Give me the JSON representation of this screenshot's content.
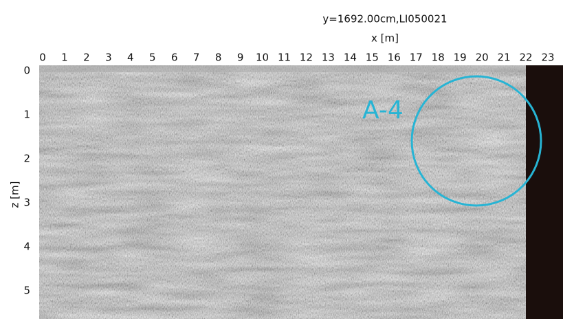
{
  "chart_data": {
    "type": "radargram",
    "title": "y=1692.00cm,LI050021",
    "xlabel": "x [m]",
    "ylabel": "z [m]",
    "annotation": "A-4",
    "xlim": [
      0,
      23
    ],
    "xticks": [
      0,
      1,
      2,
      3,
      4,
      5,
      6,
      7,
      8,
      9,
      10,
      11,
      12,
      13,
      14,
      15,
      16,
      17,
      18,
      19,
      20,
      21,
      22,
      23
    ],
    "ylim": [
      0,
      5
    ],
    "yticks": [
      0,
      1,
      2,
      3,
      4,
      5
    ],
    "y_reversed": true
  }
}
